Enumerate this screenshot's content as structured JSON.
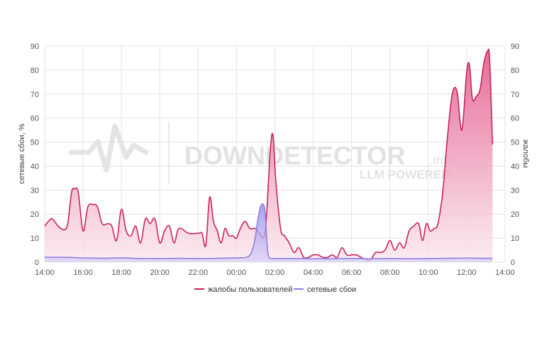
{
  "chart_data": {
    "type": "area",
    "x_ticks": [
      "14:00",
      "16:00",
      "18:00",
      "20:00",
      "22:00",
      "00:00",
      "02:00",
      "04:00",
      "06:00",
      "08:00",
      "10:00",
      "12:00",
      "14:00"
    ],
    "y_ticks": [
      0,
      10,
      20,
      30,
      40,
      50,
      60,
      70,
      80,
      90
    ],
    "ylim": [
      0,
      90
    ],
    "y2lim": [
      0,
      90
    ],
    "ylabel_left": "сетевые сбои, %",
    "ylabel_right": "жалобы",
    "grid": true,
    "legend_position": "bottom-center",
    "series": [
      {
        "name": "жалобы пользователей",
        "color": "#c9245e",
        "fill_top": "#e0497e",
        "fill_bottom": "#fbe7ee",
        "points": [
          [
            0,
            15
          ],
          [
            0.2,
            17
          ],
          [
            0.4,
            18
          ],
          [
            0.7,
            15
          ],
          [
            1,
            13.5
          ],
          [
            1.2,
            16
          ],
          [
            1.4,
            29
          ],
          [
            1.55,
            30.5
          ],
          [
            1.75,
            29
          ],
          [
            2.0,
            13
          ],
          [
            2.25,
            23
          ],
          [
            2.5,
            24
          ],
          [
            2.75,
            23
          ],
          [
            3.0,
            16
          ],
          [
            3.3,
            16
          ],
          [
            3.5,
            15
          ],
          [
            3.75,
            9
          ],
          [
            4.0,
            22
          ],
          [
            4.25,
            13
          ],
          [
            4.5,
            11
          ],
          [
            4.75,
            15
          ],
          [
            5.0,
            8
          ],
          [
            5.25,
            18
          ],
          [
            5.5,
            16
          ],
          [
            5.75,
            18
          ],
          [
            6.0,
            8
          ],
          [
            6.25,
            13
          ],
          [
            6.5,
            15
          ],
          [
            6.75,
            8
          ],
          [
            7.0,
            14
          ],
          [
            7.5,
            12
          ],
          [
            8.0,
            12
          ],
          [
            8.2,
            12
          ],
          [
            8.4,
            7
          ],
          [
            8.6,
            27
          ],
          [
            8.8,
            17
          ],
          [
            9.0,
            13
          ],
          [
            9.2,
            8
          ],
          [
            9.4,
            14
          ],
          [
            9.6,
            11
          ],
          [
            9.8,
            11
          ],
          [
            10.0,
            10
          ],
          [
            10.2,
            14
          ],
          [
            10.45,
            17
          ],
          [
            10.7,
            14
          ],
          [
            11.0,
            14
          ],
          [
            11.2,
            12
          ],
          [
            11.5,
            13
          ],
          [
            11.75,
            45
          ],
          [
            11.9,
            53
          ],
          [
            12.05,
            34
          ],
          [
            12.3,
            14
          ],
          [
            12.5,
            11
          ],
          [
            12.75,
            8
          ],
          [
            13.0,
            4
          ],
          [
            13.25,
            6
          ],
          [
            13.5,
            2
          ],
          [
            13.75,
            2
          ],
          [
            14.0,
            3
          ],
          [
            14.25,
            3
          ],
          [
            14.5,
            2
          ],
          [
            14.75,
            2
          ],
          [
            15.0,
            3
          ],
          [
            15.25,
            2
          ],
          [
            15.5,
            6
          ],
          [
            15.75,
            3
          ],
          [
            16.0,
            3
          ],
          [
            16.25,
            3
          ],
          [
            16.5,
            2
          ],
          [
            16.75,
            1
          ],
          [
            17.0,
            1
          ],
          [
            17.25,
            4
          ],
          [
            17.5,
            4
          ],
          [
            17.75,
            5
          ],
          [
            18.0,
            9
          ],
          [
            18.25,
            5
          ],
          [
            18.5,
            8
          ],
          [
            18.75,
            6
          ],
          [
            19.0,
            13
          ],
          [
            19.25,
            15
          ],
          [
            19.5,
            16
          ],
          [
            19.7,
            9
          ],
          [
            19.9,
            16
          ],
          [
            20.1,
            13
          ],
          [
            20.3,
            14
          ],
          [
            20.5,
            16
          ],
          [
            20.75,
            29
          ],
          [
            21.0,
            52
          ],
          [
            21.25,
            70
          ],
          [
            21.5,
            71
          ],
          [
            21.75,
            55
          ],
          [
            22.0,
            79
          ],
          [
            22.15,
            82
          ],
          [
            22.3,
            68
          ],
          [
            22.5,
            69
          ],
          [
            22.7,
            72
          ],
          [
            22.9,
            83
          ],
          [
            23.1,
            88
          ],
          [
            23.2,
            84
          ],
          [
            23.35,
            49
          ]
        ]
      },
      {
        "name": "сетевые сбои",
        "color": "#8f7fe0",
        "fill_top": "#8e84ea",
        "fill_bottom": "#d6d1f6",
        "points": [
          [
            0,
            2
          ],
          [
            1,
            2
          ],
          [
            2,
            1.8
          ],
          [
            3,
            1.6
          ],
          [
            4,
            1.8
          ],
          [
            5,
            1.5
          ],
          [
            6,
            1.5
          ],
          [
            7,
            1.6
          ],
          [
            8,
            1.5
          ],
          [
            9,
            1.6
          ],
          [
            10,
            1.8
          ],
          [
            10.5,
            2
          ],
          [
            10.75,
            3.5
          ],
          [
            10.95,
            9
          ],
          [
            11.1,
            17
          ],
          [
            11.25,
            23
          ],
          [
            11.4,
            24
          ],
          [
            11.5,
            20
          ],
          [
            11.6,
            7
          ],
          [
            11.7,
            2
          ],
          [
            12,
            1.5
          ],
          [
            13,
            1.5
          ],
          [
            14,
            1.4
          ],
          [
            15,
            1.4
          ],
          [
            16,
            1.5
          ],
          [
            17,
            1.4
          ],
          [
            18,
            1.5
          ],
          [
            19,
            1.4
          ],
          [
            20,
            1.5
          ],
          [
            21,
            1.6
          ],
          [
            22,
            1.7
          ],
          [
            23,
            1.6
          ],
          [
            23.35,
            1.6
          ]
        ]
      }
    ]
  },
  "watermark": {
    "brand": "DOWNDETECTOR",
    "suffix": ".info",
    "tagline": "LLM POWERED"
  }
}
